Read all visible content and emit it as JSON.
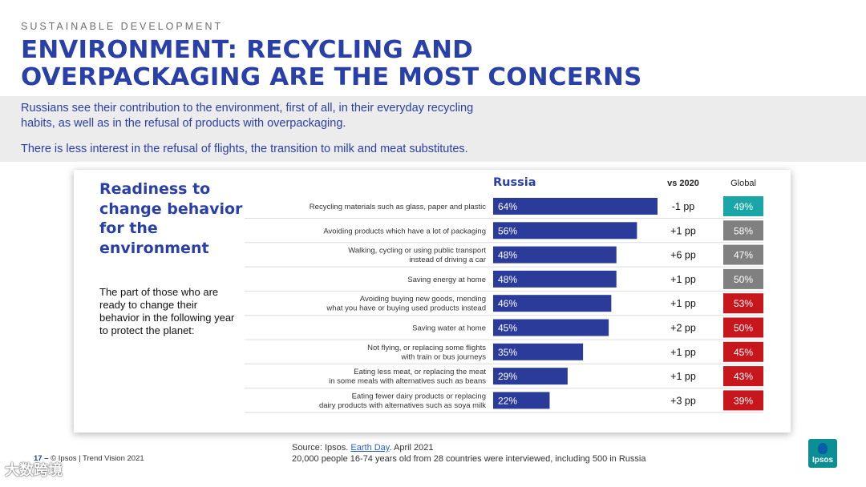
{
  "header": {
    "kicker": "SUSTAINABLE DEVELOPMENT",
    "title_line1": "ENVIRONMENT: RECYCLING AND",
    "title_line2": "OVERPACKAGING ARE THE MOST CONCERNS"
  },
  "intro": {
    "line1": "Russians see their contribution to the environment, first of all, in their everyday recycling",
    "line2": "habits, as well as in the refusal of products with overpackaging.",
    "line3": "There is less interest in the refusal of flights, the transition to milk and meat substitutes."
  },
  "sidebar": {
    "title": "Readiness to change behavior for the environment",
    "description": "The part of those who are ready to change their behavior in the following year to protect the planet:"
  },
  "colors": {
    "bar": "#2b3b9a",
    "accent_blue": "#2940a8",
    "global_teal": "#1aa6a6",
    "global_gray": "#808080",
    "global_red": "#c8161d"
  },
  "chart_data": {
    "type": "bar",
    "orientation": "horizontal",
    "series_title": "Russia",
    "vs_header": "vs 2020",
    "global_header": "Global",
    "xlim": [
      0,
      64
    ],
    "rows": [
      {
        "label_lines": [
          "Recycling materials such as glass, paper and plastic"
        ],
        "value": 64,
        "value_label": "64%",
        "vs2020": "-1 pp",
        "global": "49%",
        "global_color": "teal"
      },
      {
        "label_lines": [
          "Avoiding products which have a lot of packaging"
        ],
        "value": 56,
        "value_label": "56%",
        "vs2020": "+1 pp",
        "global": "58%",
        "global_color": "gray"
      },
      {
        "label_lines": [
          "Walking, cycling or using public transport",
          "instead of driving a car"
        ],
        "value": 48,
        "value_label": "48%",
        "vs2020": "+6 pp",
        "global": "47%",
        "global_color": "gray"
      },
      {
        "label_lines": [
          "Saving energy at home"
        ],
        "value": 48,
        "value_label": "48%",
        "vs2020": "+1 pp",
        "global": "50%",
        "global_color": "gray"
      },
      {
        "label_lines": [
          "Avoiding buying new goods, mending",
          "what you have or buying used products instead"
        ],
        "value": 46,
        "value_label": "46%",
        "vs2020": "+1 pp",
        "global": "53%",
        "global_color": "red"
      },
      {
        "label_lines": [
          "Saving water at home"
        ],
        "value": 45,
        "value_label": "45%",
        "vs2020": "+2 pp",
        "global": "50%",
        "global_color": "red"
      },
      {
        "label_lines": [
          "Not flying, or replacing some flights",
          "with train or bus journeys"
        ],
        "value": 35,
        "value_label": "35%",
        "vs2020": "+1 pp",
        "global": "45%",
        "global_color": "red"
      },
      {
        "label_lines": [
          "Eating less meat, or replacing the meat",
          "in some meals with alternatives such as beans"
        ],
        "value": 29,
        "value_label": "29%",
        "vs2020": "+1 pp",
        "global": "43%",
        "global_color": "red"
      },
      {
        "label_lines": [
          "Eating fewer dairy products or replacing",
          "dairy products with alternatives such as soya milk"
        ],
        "value": 22,
        "value_label": "22%",
        "vs2020": "+3 pp",
        "global": "39%",
        "global_color": "red"
      }
    ]
  },
  "footer": {
    "page_number": "17 –",
    "copyright": "© Ipsos | Trend Vision 2021",
    "source_prefix": "Source: Ipsos.",
    "source_link": "Earth Day",
    "source_suffix": ". April 2021",
    "source_line2": "20,000 people 16-74 years old from 28 countries were interviewed, including 500 in Russia",
    "watermark": "大数跨境",
    "logo_text": "Ipsos"
  }
}
